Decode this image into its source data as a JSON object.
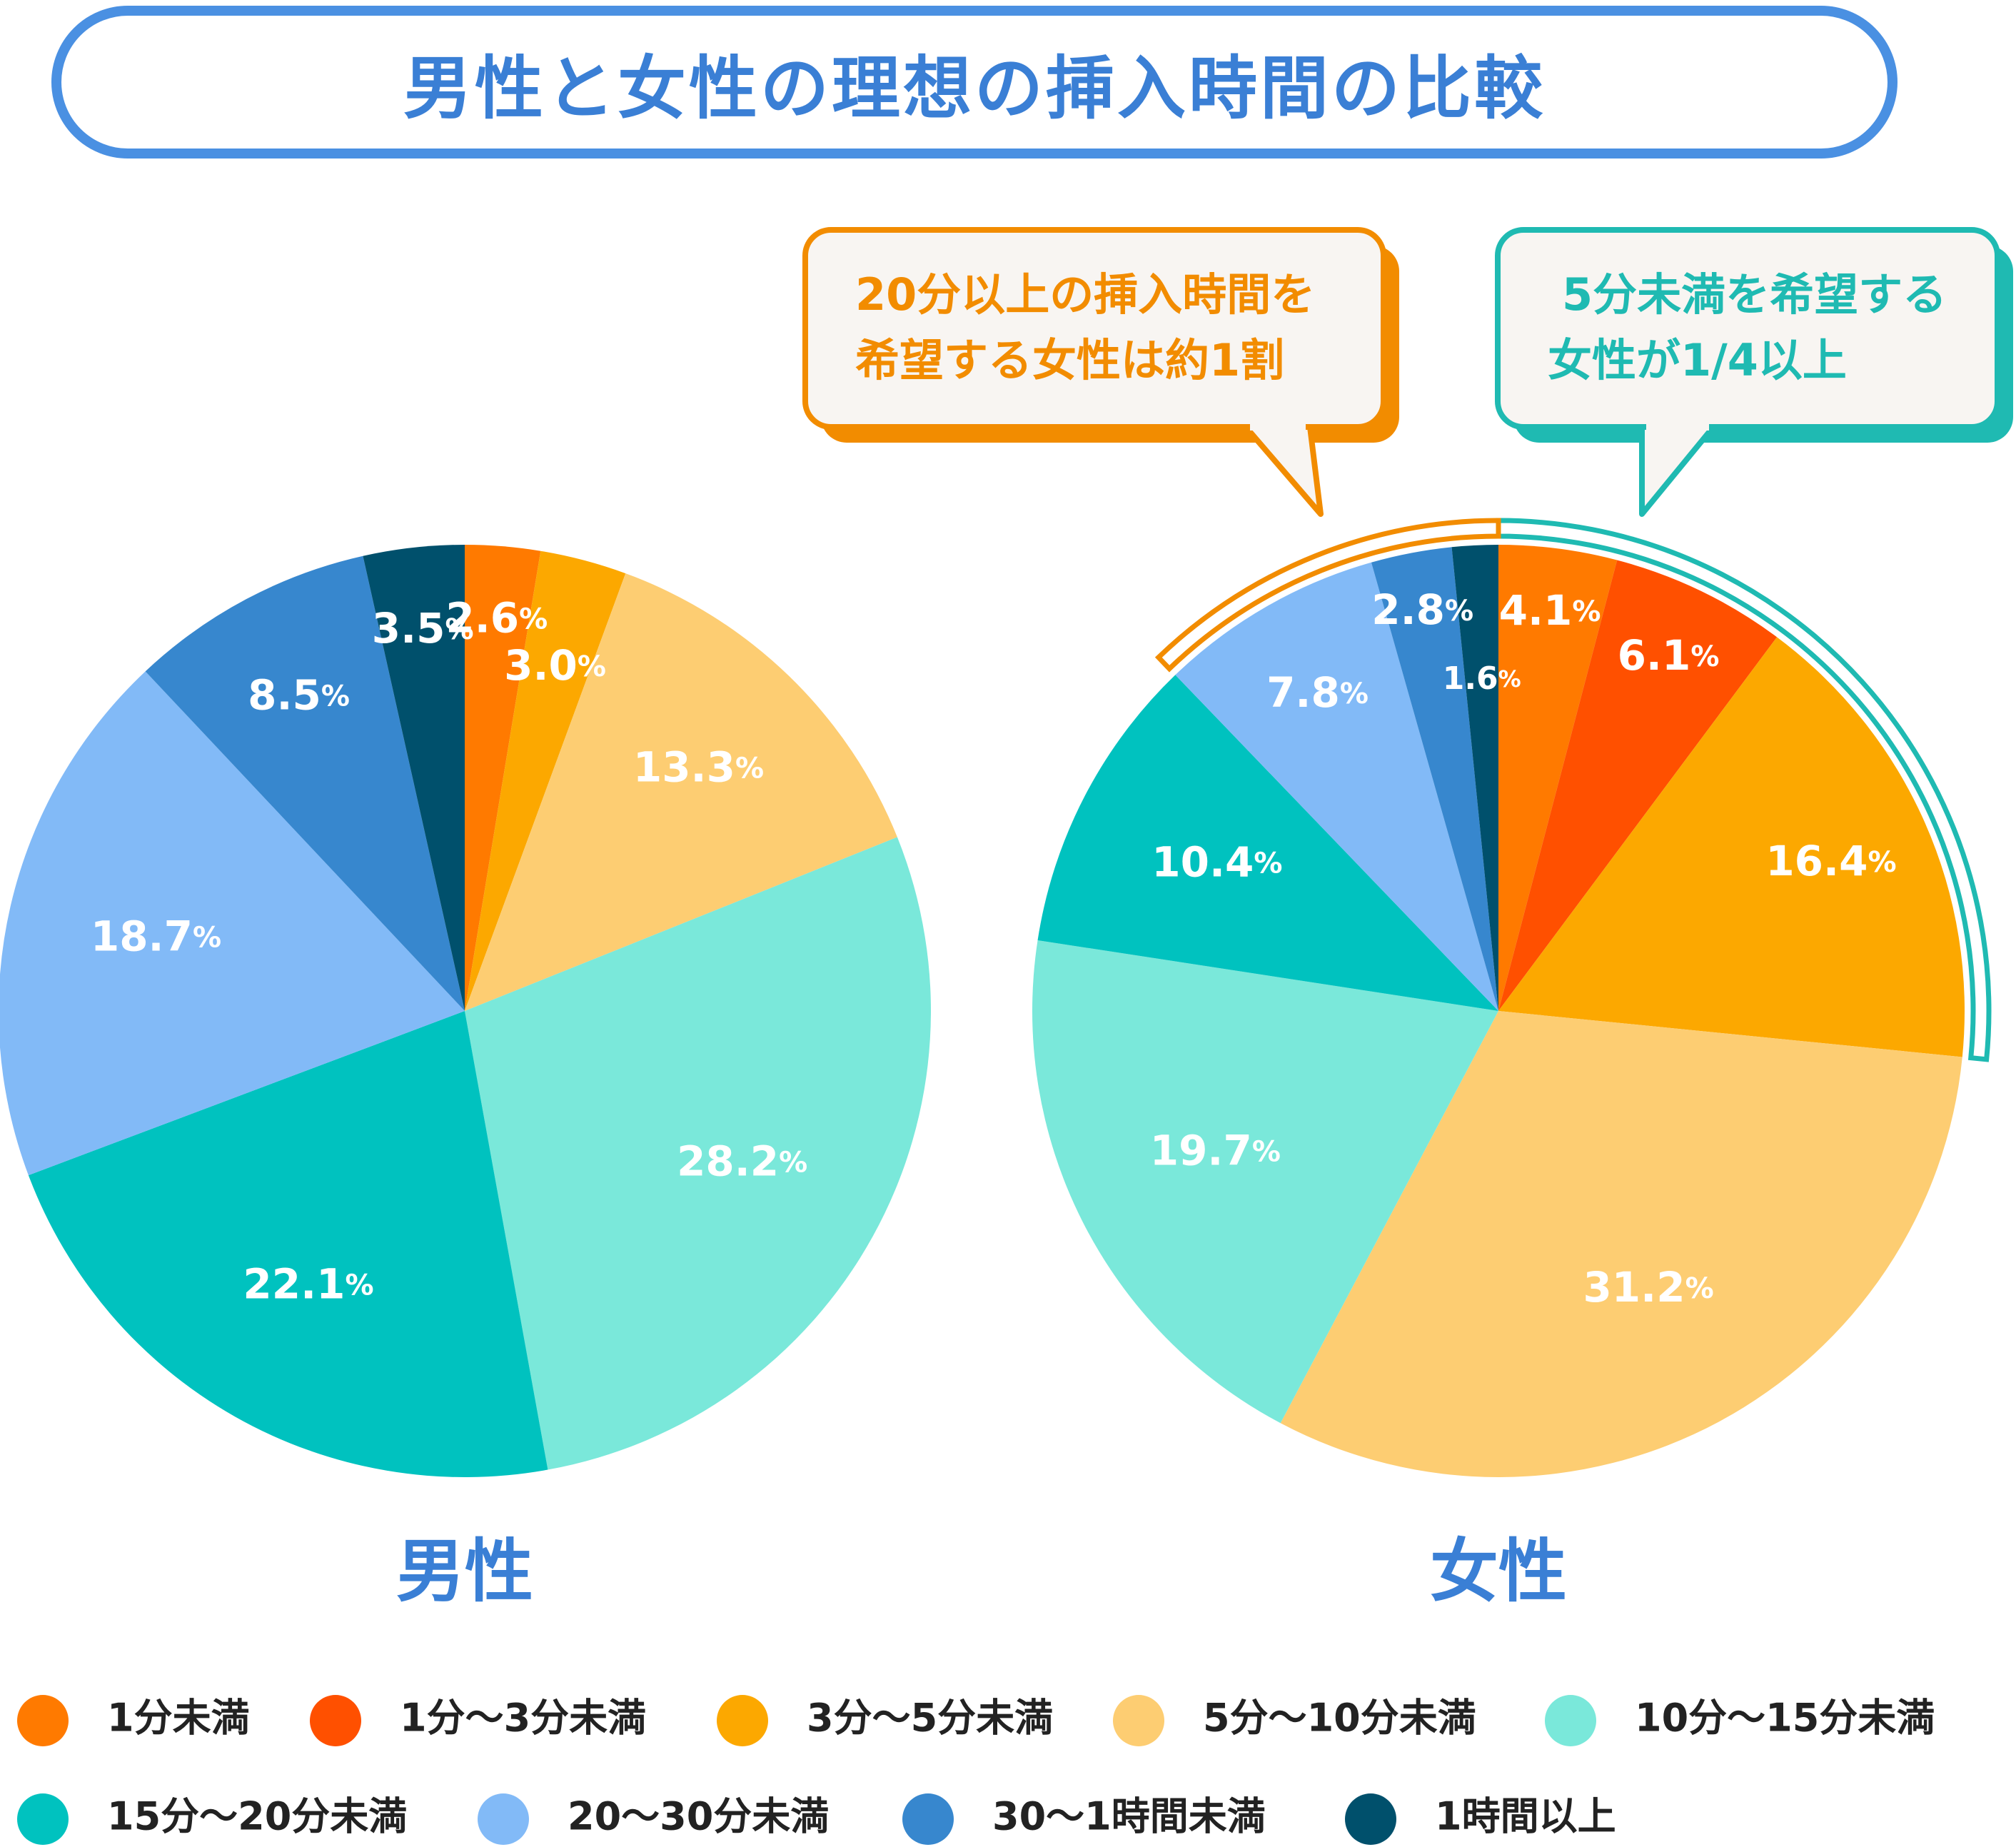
{
  "title": "男性と女性の理想の挿入時間の比較",
  "callouts": [
    {
      "lines": [
        "20分以上の挿入時間を",
        "希望する女性は約1割"
      ],
      "color": "#f28c00",
      "shadow": "#f28c00"
    },
    {
      "lines": [
        "5分未満を希望する",
        "女性が1/4以上"
      ],
      "color": "#1fbab2",
      "shadow": "#1fbab2"
    }
  ],
  "legend": [
    {
      "label": "1分未満",
      "color": "#ff7a00"
    },
    {
      "label": "1分〜3分未満",
      "color": "#ff5000"
    },
    {
      "label": "3分〜5分未満",
      "color": "#fca800"
    },
    {
      "label": "5分〜10分未満",
      "color": "#fdcd72"
    },
    {
      "label": "10分〜15分未満",
      "color": "#7ae8da"
    },
    {
      "label": "15分〜20分未満",
      "color": "#00c2bf"
    },
    {
      "label": "20〜30分未満",
      "color": "#82baf7"
    },
    {
      "label": "30〜1時間未満",
      "color": "#3787ce"
    },
    {
      "label": "1時間以上",
      "color": "#00506c"
    }
  ],
  "chart_data": [
    {
      "type": "pie",
      "title": "男性",
      "categories": [
        "1分未満",
        "1分〜3分未満",
        "3分〜5分未満",
        "5分〜10分未満",
        "10分〜15分未満",
        "15分〜20分未満",
        "20〜30分未満",
        "30〜1時間未満",
        "1時間以上"
      ],
      "values": [
        2.6,
        3.0,
        13.3,
        28.2,
        22.1,
        18.7,
        8.5,
        3.5,
        0
      ],
      "labels": [
        "2.6",
        "3.0",
        "13.3",
        "28.2",
        "22.1",
        "18.7",
        "8.5",
        "3.5",
        ""
      ],
      "unit": "%",
      "colors": [
        "#ff7a00",
        "#fca800",
        "#fdcd72",
        "#7ae8da",
        "#00c2bf",
        "#82baf7",
        "#3787ce",
        "#00506c",
        "#00506c"
      ]
    },
    {
      "type": "pie",
      "title": "女性",
      "categories": [
        "1分未満",
        "1分〜3分未満",
        "3分〜5分未満",
        "5分〜10分未満",
        "10分〜15分未満",
        "15分〜20分未満",
        "20〜30分未満",
        "30〜1時間未満",
        "1時間以上"
      ],
      "values": [
        4.1,
        6.1,
        16.4,
        31.2,
        19.7,
        10.4,
        7.8,
        2.8,
        1.6
      ],
      "labels": [
        "4.1",
        "6.1",
        "16.4",
        "31.2",
        "19.7",
        "10.4",
        "7.8",
        "2.8",
        "1.6"
      ],
      "unit": "%",
      "colors": [
        "#ff7a00",
        "#ff5000",
        "#fca800",
        "#fdcd72",
        "#7ae8da",
        "#00c2bf",
        "#82baf7",
        "#3787ce",
        "#00506c"
      ]
    }
  ]
}
